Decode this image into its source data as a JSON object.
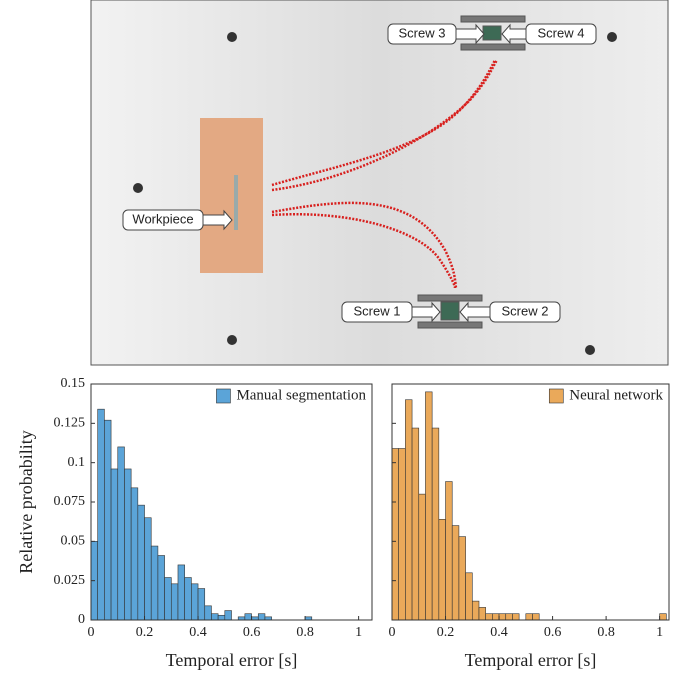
{
  "scene": {
    "labels": [
      "Screw 3",
      "Screw 4",
      "Workpiece",
      "Screw 1",
      "Screw 2"
    ]
  },
  "chart_data": [
    {
      "type": "histogram",
      "ylabel": "Relative probability",
      "xlabel": "Temporal error [s]",
      "legend": "upper right",
      "series": [
        {
          "name": "Manual segmentation",
          "color": "#5ba4d8"
        }
      ],
      "bins": [
        0,
        0.025,
        0.05,
        0.075,
        0.1,
        0.125,
        0.15,
        0.175,
        0.2,
        0.225,
        0.25,
        0.275,
        0.3,
        0.325,
        0.35,
        0.375,
        0.4,
        0.425,
        0.45,
        0.475,
        0.5,
        0.525,
        0.55,
        0.575,
        0.6,
        0.625,
        0.65,
        0.675,
        0.7,
        0.725,
        0.75,
        0.775,
        0.8,
        0.825,
        0.85,
        0.875,
        0.9,
        0.925,
        0.95,
        0.975,
        1
      ],
      "values": [
        0.05,
        0.134,
        0.127,
        0.096,
        0.11,
        0.096,
        0.084,
        0.073,
        0.065,
        0.047,
        0.041,
        0.027,
        0.023,
        0.035,
        0.027,
        0.023,
        0.02,
        0.009,
        0.004,
        0.003,
        0.006,
        0,
        0.002,
        0.004,
        0.002,
        0.004,
        0.002,
        0,
        0,
        0,
        0,
        0,
        0.002,
        0,
        0,
        0,
        0,
        0,
        0,
        0
      ],
      "xlim": [
        0,
        1.05
      ],
      "xticks": [
        0,
        0.2,
        0.4,
        0.6,
        0.8,
        1
      ],
      "ylim": [
        0,
        0.15
      ],
      "yticks": [
        0,
        0.025,
        0.05,
        0.075,
        0.1,
        0.125,
        0.15
      ]
    },
    {
      "type": "histogram",
      "xlabel": "Temporal error [s]",
      "legend": "upper right",
      "series": [
        {
          "name": "Neural network",
          "color": "#eaa95a"
        }
      ],
      "bins": [
        0,
        0.025,
        0.05,
        0.075,
        0.1,
        0.125,
        0.15,
        0.175,
        0.2,
        0.225,
        0.25,
        0.275,
        0.3,
        0.325,
        0.35,
        0.375,
        0.4,
        0.425,
        0.45,
        0.475,
        0.5,
        0.525,
        0.55,
        0.575,
        0.6,
        0.625,
        0.65,
        0.675,
        0.7,
        0.725,
        0.75,
        0.775,
        0.8,
        0.825,
        0.85,
        0.875,
        0.9,
        0.925,
        0.95,
        0.975,
        1,
        1.025
      ],
      "values": [
        0.109,
        0.109,
        0.14,
        0.122,
        0.08,
        0.145,
        0.122,
        0.064,
        0.088,
        0.06,
        0.053,
        0.03,
        0.012,
        0.008,
        0.004,
        0.004,
        0.004,
        0.004,
        0.004,
        0,
        0.004,
        0.004,
        0,
        0,
        0,
        0,
        0,
        0,
        0,
        0,
        0,
        0,
        0,
        0,
        0,
        0,
        0,
        0,
        0,
        0,
        0.004
      ],
      "xlim": [
        0,
        1.035
      ],
      "xticks": [
        0,
        0.2,
        0.4,
        0.6,
        0.8,
        1
      ],
      "ylim": [
        0,
        0.15
      ],
      "yticks": [
        0,
        0.025,
        0.05,
        0.075,
        0.1,
        0.125,
        0.15
      ]
    }
  ]
}
